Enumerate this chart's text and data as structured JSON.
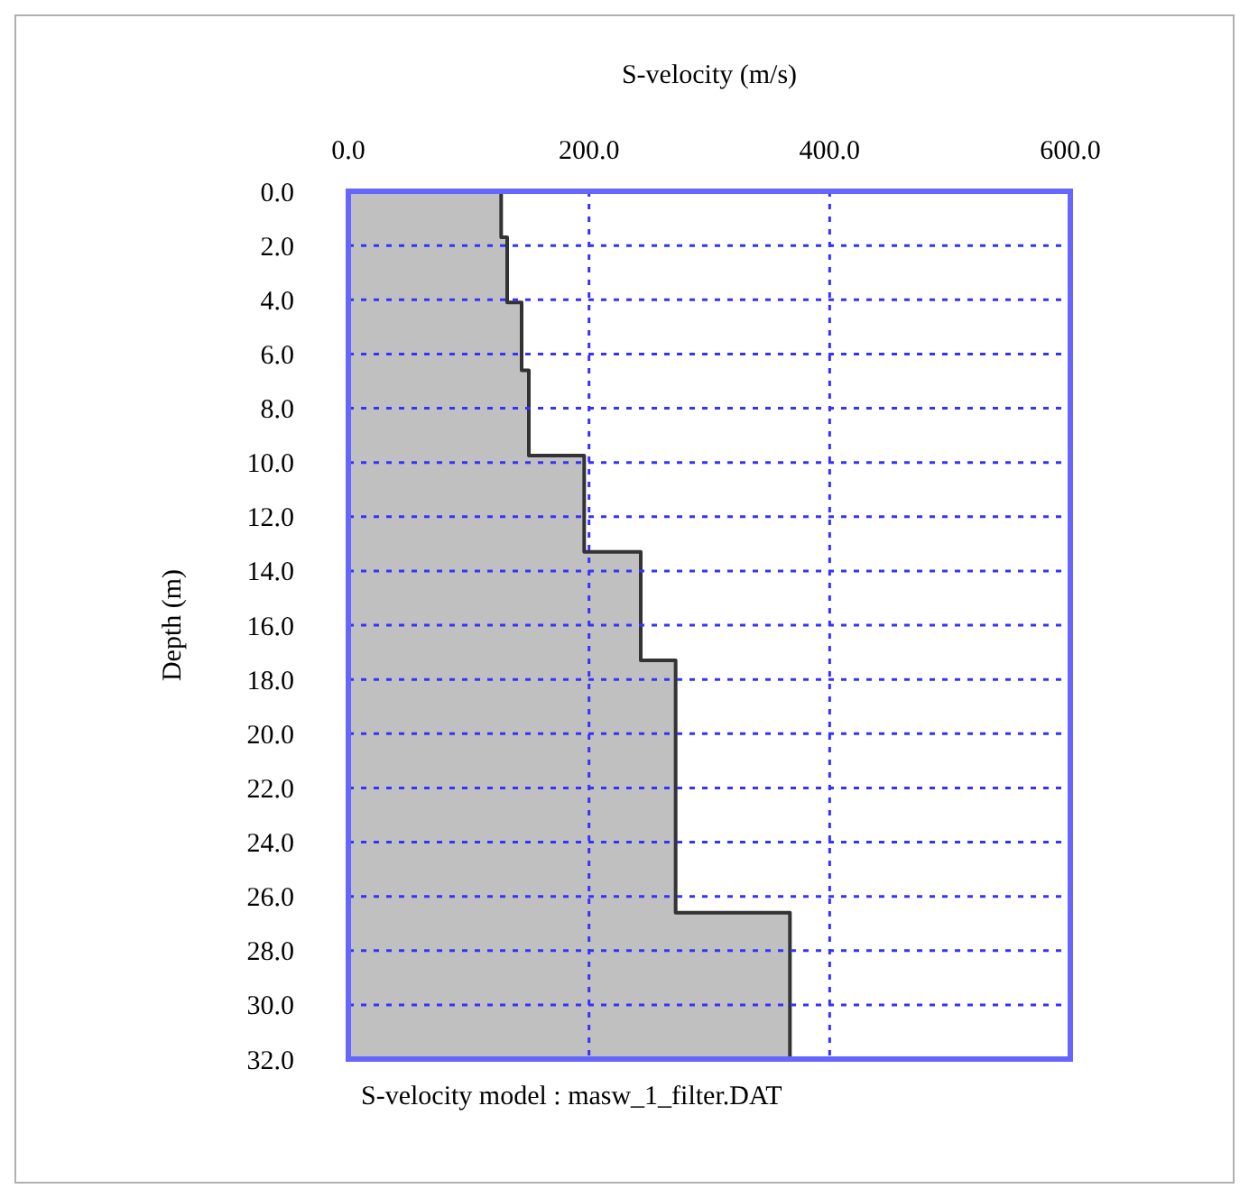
{
  "chart_data": {
    "type": "area",
    "orientation": "horizontal",
    "xlabel": "S-velocity (m/s)",
    "ylabel": "Depth (m)",
    "annotations": [
      "S-velocity model : masw_1_filter.DAT"
    ],
    "x": [
      0,
      1.7,
      4.1,
      6.6,
      9.75,
      13.3,
      17.3,
      26.6,
      32
    ],
    "series": [
      {
        "color": "#c0c0c0",
        "values": [
          127,
          132,
          144,
          150,
          196,
          243,
          272,
          367,
          367
        ]
      }
    ],
    "xlim": [
      0,
      600
    ],
    "xticks": [
      {
        "value": 0,
        "label": "0.0"
      },
      {
        "value": 200,
        "label": "200.0"
      },
      {
        "value": 400,
        "label": "400.0"
      },
      {
        "value": 600,
        "label": "600.0"
      }
    ],
    "ylim": [
      32,
      0
    ],
    "yticks": [
      {
        "value": 0,
        "label": "0.0"
      },
      {
        "value": 2,
        "label": "2.0"
      },
      {
        "value": 4,
        "label": "4.0"
      },
      {
        "value": 6,
        "label": "6.0"
      },
      {
        "value": 8,
        "label": "8.0"
      },
      {
        "value": 10,
        "label": "10.0"
      },
      {
        "value": 12,
        "label": "12.0"
      },
      {
        "value": 14,
        "label": "14.0"
      },
      {
        "value": 16,
        "label": "16.0"
      },
      {
        "value": 18,
        "label": "18.0"
      },
      {
        "value": 20,
        "label": "20.0"
      },
      {
        "value": 22,
        "label": "22.0"
      },
      {
        "value": 24,
        "label": "24.0"
      },
      {
        "value": 26,
        "label": "26.0"
      },
      {
        "value": 28,
        "label": "28.0"
      },
      {
        "value": 30,
        "label": "30.0"
      },
      {
        "value": 32,
        "label": "32.0"
      }
    ],
    "grid": true
  }
}
